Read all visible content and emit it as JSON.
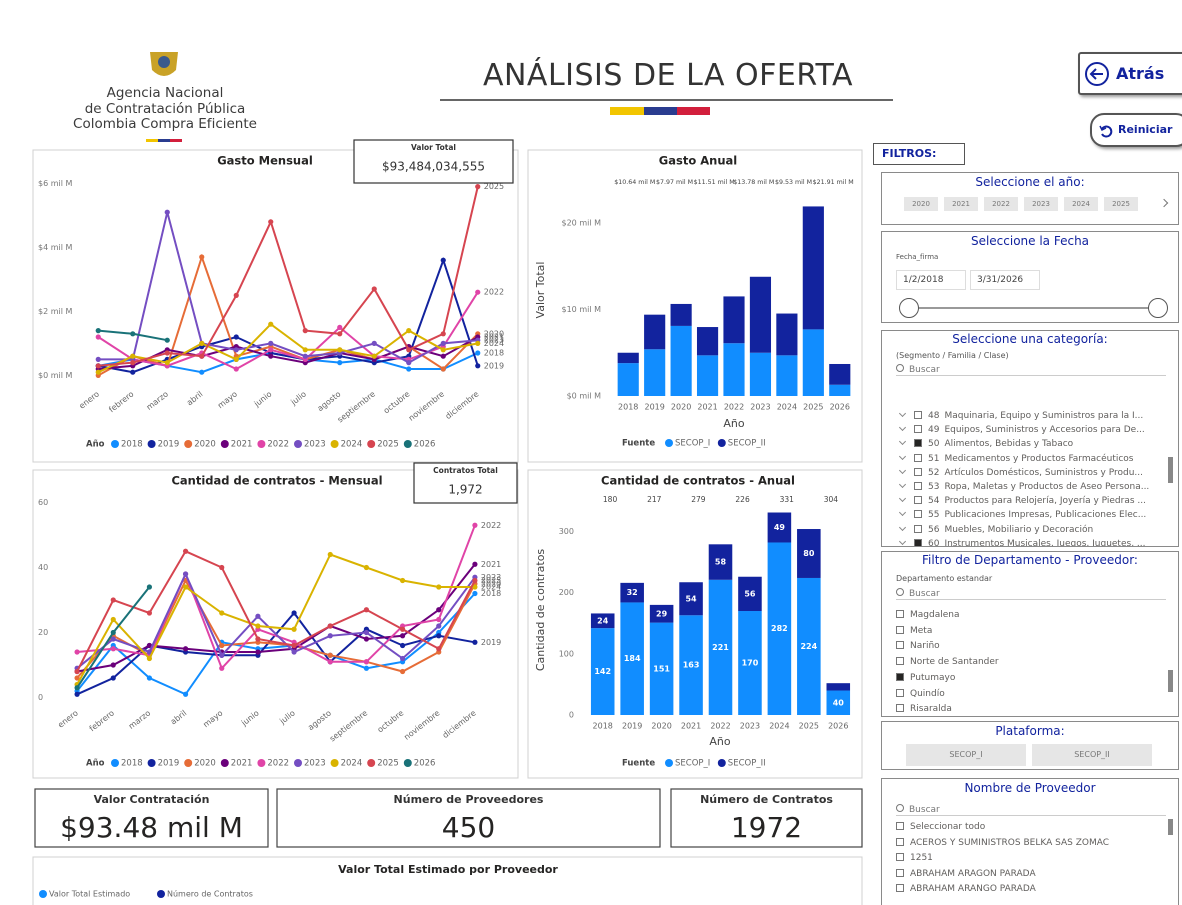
{
  "header": {
    "logo_lines": [
      "Agencia Nacional",
      "de Contratación Pública",
      "Colombia Compra Eficiente"
    ],
    "title": "ANÁLISIS DE LA OFERTA",
    "buttons": [
      "Atrás",
      "Reiniciar"
    ]
  },
  "chart_data": [
    {
      "type": "line",
      "title": "Gasto Mensual",
      "legend_title": "Año",
      "categories": [
        "enero",
        "febrero",
        "marzo",
        "abril",
        "mayo",
        "junio",
        "julio",
        "agosto",
        "septiembre",
        "octubre",
        "noviembre",
        "diciembre"
      ],
      "ylim": [
        -0.3,
        6.2
      ],
      "yticks": [
        {
          "value": 0,
          "label": "$0 mil M"
        },
        {
          "value": 2,
          "label": "$2 mil M"
        },
        {
          "value": 4,
          "label": "$4 mil M"
        },
        {
          "value": 6,
          "label": "$6 mil M"
        }
      ],
      "grid": false,
      "series": [
        {
          "name": "2018",
          "color": "#118dff",
          "values": [
            0.3,
            0.5,
            0.3,
            0.1,
            0.5,
            0.7,
            0.5,
            0.4,
            0.5,
            0.2,
            0.2,
            0.7
          ]
        },
        {
          "name": "2019",
          "color": "#12239e",
          "values": [
            0.3,
            0.1,
            0.5,
            0.9,
            1.2,
            0.7,
            0.5,
            0.6,
            0.4,
            0.6,
            3.6,
            0.3
          ]
        },
        {
          "name": "2020",
          "color": "#e66c37",
          "values": [
            0.0,
            0.6,
            0.3,
            3.7,
            0.6,
            0.9,
            0.5,
            0.8,
            0.5,
            0.9,
            0.2,
            1.3
          ]
        },
        {
          "name": "2021",
          "color": "#6b007b",
          "values": [
            0.2,
            0.3,
            0.8,
            0.6,
            0.9,
            0.6,
            0.4,
            0.7,
            0.5,
            0.9,
            0.6,
            1.2
          ]
        },
        {
          "name": "2022",
          "color": "#e044a7",
          "values": [
            1.2,
            0.5,
            0.3,
            0.7,
            0.2,
            0.8,
            0.5,
            1.5,
            0.6,
            0.5,
            0.9,
            2.6
          ]
        },
        {
          "name": "2023",
          "color": "#744ec2",
          "values": [
            0.5,
            0.5,
            5.1,
            1.0,
            0.8,
            1.0,
            0.6,
            0.7,
            1.0,
            0.4,
            1.0,
            1.1
          ]
        },
        {
          "name": "2024",
          "color": "#d9b300",
          "values": [
            0.1,
            0.6,
            0.4,
            1.0,
            0.5,
            1.6,
            0.8,
            0.8,
            0.6,
            1.4,
            0.8,
            1.0
          ]
        },
        {
          "name": "2025",
          "color": "#d64550",
          "values": [
            0.3,
            0.4,
            0.7,
            0.6,
            2.5,
            4.8,
            1.4,
            1.3,
            2.7,
            0.8,
            1.3,
            5.9
          ]
        },
        {
          "name": "2026",
          "color": "#197278",
          "values": [
            1.4,
            1.3,
            1.1,
            null,
            null,
            null,
            null,
            null,
            null,
            null,
            null,
            null
          ]
        }
      ]
    },
    {
      "type": "bar",
      "stacked": true,
      "title": "Gasto Anual",
      "legend_title": "Fuente",
      "y_label": "Valor Total",
      "x_label": "Año",
      "categories": [
        "2018",
        "2019",
        "2020",
        "2021",
        "2022",
        "2023",
        "2024",
        "2025",
        "2026"
      ],
      "ylim": [
        0,
        23
      ],
      "yticks": [
        {
          "value": 0,
          "label": "$0 mil M"
        },
        {
          "value": 10,
          "label": "$10 mil M"
        },
        {
          "value": 20,
          "label": "$20 mil M"
        }
      ],
      "grid": false,
      "data_labels": false,
      "series": [
        {
          "name": "SECOP_I",
          "color": "#118dff",
          "values": [
            3.8,
            5.4,
            8.1,
            4.7,
            6.1,
            5.0,
            4.7,
            7.7,
            1.3
          ]
        },
        {
          "name": "SECOP_II",
          "color": "#12239e",
          "values": [
            1.2,
            4.0,
            2.54,
            3.27,
            5.41,
            8.78,
            4.83,
            14.21,
            2.4
          ]
        }
      ],
      "totals": [
        null,
        null,
        10.64,
        7.97,
        11.51,
        13.78,
        9.53,
        21.91,
        null
      ],
      "total_labels": [
        null,
        null,
        "$10.64 mil M",
        "$7.97 mil M",
        "$11.51 mil M",
        "$13.78 mil M",
        "$9.53 mil M",
        "$21.91 mil M",
        null
      ]
    },
    {
      "type": "line",
      "title": "Cantidad de contratos - Mensual",
      "legend_title": "Año",
      "categories": [
        "enero",
        "febrero",
        "marzo",
        "abril",
        "mayo",
        "junio",
        "julio",
        "agosto",
        "septiembre",
        "octubre",
        "noviembre",
        "diciembre"
      ],
      "ylim": [
        -2,
        62
      ],
      "yticks": [
        0,
        20,
        40,
        60
      ],
      "grid": false,
      "series": [
        {
          "name": "2018",
          "color": "#118dff",
          "values": [
            2,
            16,
            6,
            1,
            17,
            15,
            16,
            13,
            9,
            11,
            20,
            32
          ]
        },
        {
          "name": "2019",
          "color": "#12239e",
          "values": [
            1,
            6,
            16,
            14,
            13,
            13,
            26,
            11,
            21,
            16,
            19,
            17
          ]
        },
        {
          "name": "2020",
          "color": "#e66c37",
          "values": [
            6,
            19,
            13,
            36,
            16,
            17,
            16,
            13,
            11,
            8,
            14,
            35
          ]
        },
        {
          "name": "2021",
          "color": "#6b007b",
          "values": [
            8,
            10,
            16,
            15,
            14,
            14,
            15,
            22,
            18,
            19,
            27,
            41
          ]
        },
        {
          "name": "2022",
          "color": "#e044a7",
          "values": [
            14,
            15,
            13,
            38,
            9,
            21,
            17,
            11,
            11,
            22,
            24,
            53
          ]
        },
        {
          "name": "2023",
          "color": "#744ec2",
          "values": [
            9,
            18,
            14,
            38,
            13,
            25,
            14,
            19,
            20,
            12,
            22,
            37
          ]
        },
        {
          "name": "2024",
          "color": "#d9b300",
          "values": [
            4,
            24,
            12,
            34,
            26,
            22,
            21,
            44,
            40,
            36,
            34,
            34
          ]
        },
        {
          "name": "2025",
          "color": "#d64550",
          "values": [
            8,
            30,
            26,
            45,
            40,
            18,
            16,
            22,
            27,
            21,
            15,
            36
          ]
        },
        {
          "name": "2026",
          "color": "#197278",
          "values": [
            3,
            20,
            34,
            null,
            null,
            null,
            null,
            null,
            null,
            null,
            null,
            null
          ]
        }
      ]
    },
    {
      "type": "bar",
      "stacked": true,
      "title": "Cantidad de contratos - Anual",
      "legend_title": "Fuente",
      "y_label": "Cantidad de contratos",
      "x_label": "Año",
      "categories": [
        "2018",
        "2019",
        "2020",
        "2021",
        "2022",
        "2023",
        "2024",
        "2025",
        "2026"
      ],
      "ylim": [
        0,
        340
      ],
      "yticks": [
        0,
        100,
        200,
        300
      ],
      "grid": false,
      "data_labels": true,
      "series": [
        {
          "name": "SECOP_I",
          "color": "#118dff",
          "values": [
            142,
            184,
            151,
            163,
            221,
            170,
            282,
            224,
            40
          ]
        },
        {
          "name": "SECOP_II",
          "color": "#12239e",
          "values": [
            24,
            32,
            29,
            54,
            58,
            56,
            49,
            80,
            12
          ]
        }
      ],
      "totals": [
        null,
        null,
        180,
        217,
        279,
        226,
        331,
        304,
        null
      ]
    }
  ],
  "cards": [
    {
      "label": "Valor Total",
      "value": 93484034555,
      "value_label": "$93,484,034,555"
    },
    {
      "label": "Contratos Total",
      "value": 1972,
      "value_label": "1,972"
    }
  ],
  "kpis": [
    {
      "label": "Valor Contratación",
      "value": 93.48,
      "value_label": "$93.48 mil M"
    },
    {
      "label": "Número de Proveedores",
      "value": 450
    },
    {
      "label": "Número de Contratos",
      "value": 1972
    }
  ],
  "bottom_panel": {
    "title": "Valor Total Estimado por Proveedor",
    "legend": [
      {
        "name": "Valor Total Estimado",
        "color": "#118dff"
      },
      {
        "name": "Número de Contratos",
        "color": "#12239e"
      }
    ]
  },
  "filters": {
    "heading": "FILTROS:",
    "year": {
      "title": "Seleccione el año:",
      "items": [
        "2020",
        "2021",
        "2022",
        "2023",
        "2024",
        "2025"
      ]
    },
    "date": {
      "title": "Seleccione la Fecha",
      "field": "Fecha_firma",
      "start": "1/2/2018",
      "end": "3/31/2026"
    },
    "category": {
      "title": "Seleccione una categoría:",
      "subtitle": "(Segmento / Familia / Clase)",
      "search": "Buscar",
      "items": [
        {
          "code": "48",
          "label": "Maquinaria, Equipo y Suministros para la I...",
          "checked": false
        },
        {
          "code": "49",
          "label": "Equipos, Suministros y Accesorios para De...",
          "checked": false
        },
        {
          "code": "50",
          "label": "Alimentos, Bebidas y Tabaco",
          "checked": true
        },
        {
          "code": "51",
          "label": "Medicamentos y Productos Farmacéuticos",
          "checked": false
        },
        {
          "code": "52",
          "label": "Artículos Domésticos, Suministros y Produ...",
          "checked": false
        },
        {
          "code": "53",
          "label": "Ropa, Maletas y Productos de Aseo Persona...",
          "checked": false
        },
        {
          "code": "54",
          "label": "Productos para Relojería, Joyería y Piedras ...",
          "checked": false
        },
        {
          "code": "55",
          "label": "Publicaciones Impresas, Publicaciones Elec...",
          "checked": false
        },
        {
          "code": "56",
          "label": "Muebles, Mobiliario y Decoración",
          "checked": false
        },
        {
          "code": "60",
          "label": "Instrumentos Musicales, Juegos, Juguetes, ...",
          "checked": true
        }
      ]
    },
    "department": {
      "title": "Filtro de Departamento - Proveedor:",
      "field": "Departamento estandar",
      "search": "Buscar",
      "items": [
        {
          "label": "Magdalena",
          "checked": false
        },
        {
          "label": "Meta",
          "checked": false
        },
        {
          "label": "Nariño",
          "checked": false
        },
        {
          "label": "Norte de Santander",
          "checked": false
        },
        {
          "label": "Putumayo",
          "checked": true
        },
        {
          "label": "Quindío",
          "checked": false
        },
        {
          "label": "Risaralda",
          "checked": false
        }
      ]
    },
    "platform": {
      "title": "Plataforma:",
      "items": [
        "SECOP_I",
        "SECOP_II"
      ]
    },
    "provider": {
      "title": "Nombre de Proveedor",
      "search": "Buscar",
      "items": [
        "Seleccionar todo",
        "ACEROS Y SUMINISTROS BELKA SAS ZOMAC",
        "1251",
        "ABRAHAM ARAGON PARADA",
        "ABRAHAM ARANGO PARADA"
      ]
    }
  }
}
